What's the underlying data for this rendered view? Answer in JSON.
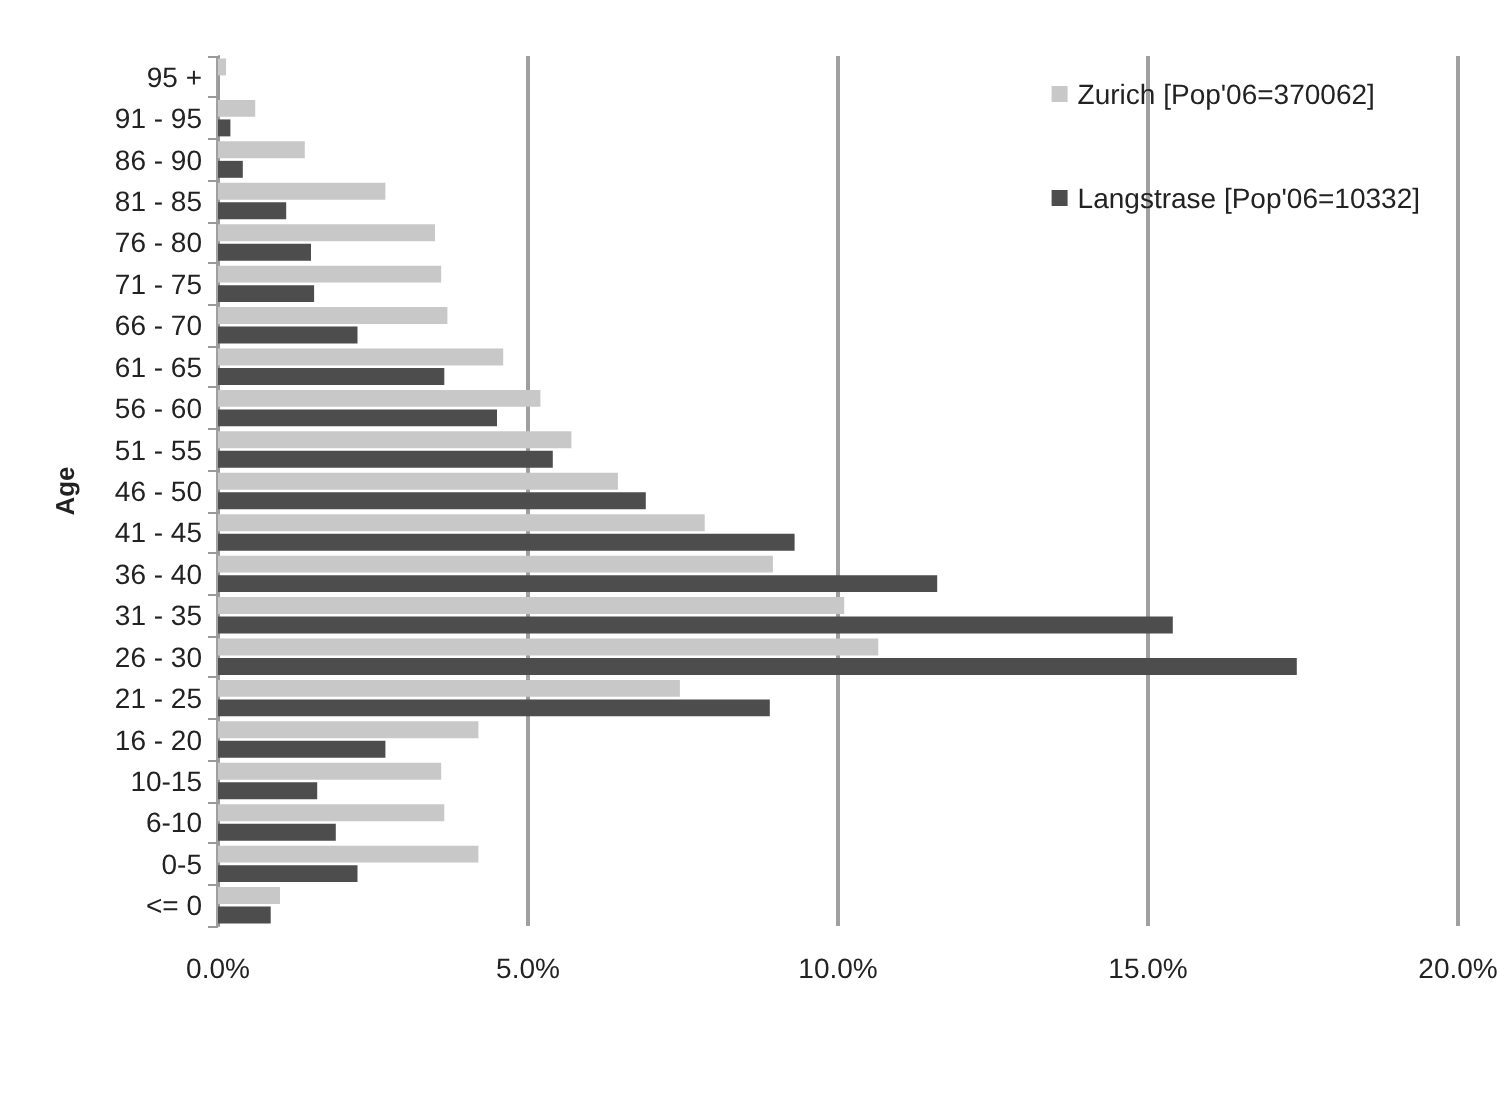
{
  "chart_data": {
    "type": "bar",
    "orientation": "horizontal",
    "ylabel": "Age",
    "categories": [
      "95 +",
      "91 - 95",
      "86 - 90",
      "81 - 85",
      "76 - 80",
      "71 - 75",
      "66 - 70",
      "61 - 65",
      "56 - 60",
      "51 - 55",
      "46 - 50",
      "41 - 45",
      "36 - 40",
      "31 - 35",
      "26 - 30",
      "21 - 25",
      "16 - 20",
      "10-15",
      "6-10",
      "0-5",
      "<= 0"
    ],
    "series": [
      {
        "name": "Zurich [Pop'06=370062]",
        "color": "#c8c8c8",
        "values": [
          0.13,
          0.6,
          1.4,
          2.7,
          3.5,
          3.6,
          3.7,
          4.6,
          5.2,
          5.7,
          6.45,
          7.85,
          8.95,
          10.1,
          10.65,
          7.45,
          4.2,
          3.6,
          3.65,
          4.2,
          1.0
        ]
      },
      {
        "name": "Langstrase [Pop'06=10332]",
        "color": "#4d4d4d",
        "values": [
          0,
          0.2,
          0.4,
          1.1,
          1.5,
          1.55,
          2.25,
          3.65,
          4.5,
          5.4,
          6.9,
          9.3,
          11.6,
          15.4,
          17.4,
          8.9,
          2.7,
          1.6,
          1.9,
          2.25,
          0.85
        ]
      }
    ],
    "xlim": [
      0,
      20
    ],
    "xticks": [
      {
        "value": 0,
        "label": "0.0%"
      },
      {
        "value": 5,
        "label": "5.0%"
      },
      {
        "value": 10,
        "label": "10.0%"
      },
      {
        "value": 15,
        "label": "15.0%"
      },
      {
        "value": 20,
        "label": "20.0%"
      }
    ],
    "grid": "x",
    "legend": "top right"
  }
}
